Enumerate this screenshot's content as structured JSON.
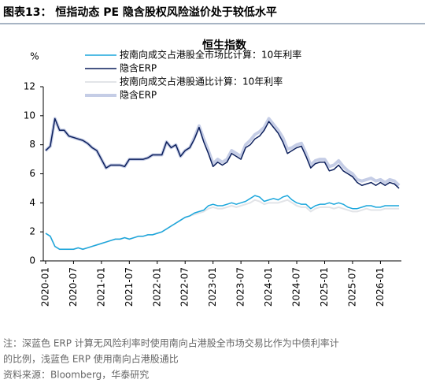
{
  "header": {
    "title": "图表13：  恒指动态 PE 隐含股权风险溢价处于较低水平"
  },
  "chart_data": {
    "type": "line",
    "title": "恒生指数",
    "ylabel": "%",
    "x": [
      "2020-01",
      "2020-02",
      "2020-03",
      "2020-04",
      "2020-05",
      "2020-06",
      "2020-07",
      "2020-08",
      "2020-09",
      "2020-10",
      "2020-11",
      "2020-12",
      "2021-01",
      "2021-02",
      "2021-03",
      "2021-04",
      "2021-05",
      "2021-06",
      "2021-07",
      "2021-08",
      "2021-09",
      "2021-10",
      "2021-11",
      "2021-12",
      "2022-01",
      "2022-02",
      "2022-03",
      "2022-04",
      "2022-05",
      "2022-06",
      "2022-07",
      "2022-08",
      "2022-09",
      "2022-10",
      "2022-11",
      "2022-12",
      "2023-01",
      "2023-02",
      "2023-03",
      "2023-04",
      "2023-05",
      "2023-06",
      "2023-07",
      "2023-08",
      "2023-09",
      "2023-10",
      "2023-11",
      "2023-12",
      "2024-01",
      "2024-02",
      "2024-03",
      "2024-04",
      "2024-05",
      "2024-06",
      "2024-07",
      "2024-08",
      "2024-09",
      "2024-10",
      "2024-11",
      "2024-12",
      "2025-01",
      "2025-02",
      "2025-03",
      "2025-04",
      "2025-05",
      "2025-06",
      "2025-07",
      "2025-08",
      "2025-09",
      "2025-10",
      "2025-11",
      "2025-12",
      "2026-01",
      "2026-02",
      "2026-03",
      "2026-04",
      "2026-05"
    ],
    "series": [
      {
        "name": "按南向成交占港股全市场比计算：10年利率",
        "color": "#1aa6dc",
        "width": 1.5,
        "values": [
          1.9,
          1.7,
          1.0,
          0.8,
          0.8,
          0.8,
          0.8,
          0.9,
          0.8,
          0.9,
          1.0,
          1.1,
          1.2,
          1.3,
          1.4,
          1.5,
          1.5,
          1.6,
          1.5,
          1.6,
          1.7,
          1.7,
          1.8,
          1.8,
          1.9,
          2.0,
          2.2,
          2.4,
          2.6,
          2.8,
          3.0,
          3.1,
          3.3,
          3.4,
          3.5,
          3.8,
          3.9,
          3.8,
          3.8,
          3.9,
          4.0,
          3.9,
          4.0,
          4.1,
          4.3,
          4.5,
          4.4,
          4.1,
          4.2,
          4.3,
          4.2,
          4.4,
          4.5,
          4.2,
          4.0,
          3.9,
          3.9,
          3.6,
          3.8,
          3.9,
          3.9,
          4.0,
          3.9,
          4.0,
          3.9,
          3.7,
          3.6,
          3.6,
          3.7,
          3.8,
          3.8,
          3.7,
          3.7,
          3.8,
          3.8,
          3.8,
          3.8
        ]
      },
      {
        "name": "隐含ERP",
        "color": "#0c1f5c",
        "width": 1.5,
        "values": [
          7.6,
          7.9,
          9.8,
          9.0,
          9.0,
          8.6,
          8.5,
          8.4,
          8.3,
          8.1,
          7.8,
          7.6,
          7.0,
          6.4,
          6.6,
          6.6,
          6.6,
          6.5,
          7.0,
          7.0,
          7.0,
          7.0,
          7.1,
          7.3,
          7.3,
          7.3,
          8.2,
          7.8,
          8.0,
          7.2,
          7.6,
          7.8,
          8.4,
          9.2,
          8.2,
          7.4,
          6.5,
          6.8,
          6.6,
          6.8,
          7.4,
          7.2,
          7.0,
          7.8,
          8.0,
          8.4,
          8.6,
          9.0,
          9.6,
          9.2,
          8.8,
          8.2,
          7.4,
          7.6,
          7.8,
          7.9,
          7.2,
          6.4,
          6.7,
          6.8,
          6.8,
          6.2,
          6.3,
          6.6,
          6.2,
          6.0,
          5.8,
          5.4,
          5.2,
          5.3,
          5.4,
          5.2,
          5.4,
          5.2,
          5.4,
          5.3,
          5.0
        ]
      },
      {
        "name": "按南向成交占港股通比计算：10年利率",
        "color": "#e2e4e8",
        "width": 2,
        "values": [
          1.9,
          1.7,
          1.0,
          0.8,
          0.8,
          0.8,
          0.8,
          0.9,
          0.8,
          0.9,
          1.0,
          1.1,
          1.2,
          1.3,
          1.4,
          1.5,
          1.5,
          1.6,
          1.5,
          1.6,
          1.7,
          1.7,
          1.8,
          1.8,
          1.9,
          2.0,
          2.2,
          2.4,
          2.6,
          2.8,
          3.0,
          3.1,
          3.2,
          3.3,
          3.4,
          3.6,
          3.7,
          3.6,
          3.6,
          3.7,
          3.8,
          3.7,
          3.8,
          3.9,
          4.0,
          4.2,
          4.1,
          3.9,
          4.0,
          4.0,
          4.0,
          4.1,
          4.2,
          4.0,
          3.8,
          3.7,
          3.7,
          3.4,
          3.6,
          3.7,
          3.7,
          3.7,
          3.6,
          3.7,
          3.6,
          3.5,
          3.4,
          3.4,
          3.5,
          3.6,
          3.5,
          3.5,
          3.5,
          3.6,
          3.6,
          3.6,
          3.6
        ]
      },
      {
        "name": "隐含ERP",
        "color": "#c5cde6",
        "width": 4,
        "values": [
          7.6,
          7.9,
          9.8,
          9.0,
          9.0,
          8.6,
          8.5,
          8.4,
          8.3,
          8.1,
          7.8,
          7.6,
          7.0,
          6.4,
          6.6,
          6.6,
          6.6,
          6.5,
          7.0,
          7.0,
          7.0,
          7.0,
          7.1,
          7.3,
          7.3,
          7.3,
          8.2,
          7.8,
          8.0,
          7.2,
          7.6,
          7.8,
          8.5,
          9.3,
          8.4,
          7.6,
          6.7,
          7.0,
          6.8,
          7.0,
          7.6,
          7.4,
          7.2,
          8.0,
          8.3,
          8.7,
          8.9,
          9.2,
          9.8,
          9.4,
          9.0,
          8.5,
          7.7,
          7.8,
          8.0,
          8.1,
          7.4,
          6.6,
          6.9,
          7.0,
          7.0,
          6.5,
          6.6,
          6.9,
          6.5,
          6.2,
          6.0,
          5.6,
          5.5,
          5.6,
          5.7,
          5.5,
          5.6,
          5.4,
          5.6,
          5.5,
          5.2
        ]
      }
    ],
    "ylim": [
      0,
      12
    ],
    "yticks": [
      0,
      2,
      4,
      6,
      8,
      10,
      12
    ]
  },
  "footer": {
    "note_1": "注：深蓝色 ERP 计算无风险利率时使用南向占港股全市场交易比作为中债利率计",
    "note_2": "的比例，浅蓝色 ERP 使用南向占港股通比",
    "source": "资料来源：Bloomberg，华泰研究"
  }
}
